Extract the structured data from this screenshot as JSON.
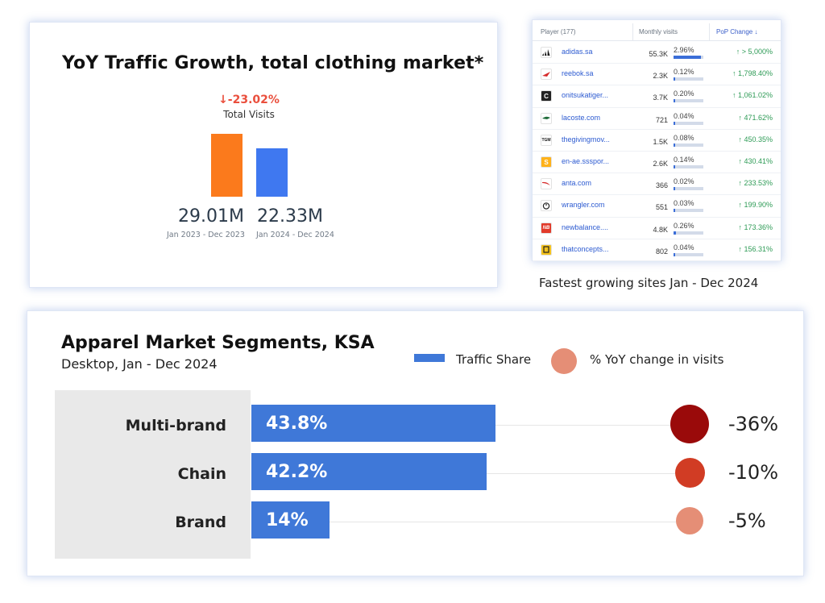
{
  "yoy_card": {
    "title": "YoY Traffic Growth, total clothing market*",
    "change": "↓-23.02%",
    "metric": "Total Visits",
    "colors": [
      "#fb7a1c",
      "#3f78f0"
    ]
  },
  "table": {
    "headers": [
      "Player (177)",
      "Monthly visits",
      "PoP Change ↓"
    ],
    "caption": "Fastest growing sites Jan - Dec 2024",
    "rows": [
      {
        "site": "adidas.sa",
        "visits": "55.3K",
        "share": "2.96%",
        "share_value": 2.96,
        "change": "↑ > 5,000%",
        "icon": "adidas-logo-icon",
        "logo_text": "",
        "logo_bg": "#ffffff",
        "logo_fg": "#111111"
      },
      {
        "site": "reebok.sa",
        "visits": "2.3K",
        "share": "0.12%",
        "share_value": 0.12,
        "change": "↑ 1,798.40%",
        "icon": "reebok-logo-icon",
        "logo_text": "",
        "logo_bg": "#ffffff",
        "logo_fg": "#d62b2b"
      },
      {
        "site": "onitsukatiger...",
        "visits": "3.7K",
        "share": "0.20%",
        "share_value": 0.2,
        "change": "↑ 1,061.02%",
        "icon": "onitsuka-logo-icon",
        "logo_text": "",
        "logo_bg": "#222222",
        "logo_fg": "#ffffff"
      },
      {
        "site": "lacoste.com",
        "visits": "721",
        "share": "0.04%",
        "share_value": 0.04,
        "change": "↑ 471.62%",
        "icon": "lacoste-logo-icon",
        "logo_text": "",
        "logo_bg": "#ffffff",
        "logo_fg": "#1f6b3a"
      },
      {
        "site": "thegivingmov...",
        "visits": "1.5K",
        "share": "0.08%",
        "share_value": 0.08,
        "change": "↑ 450.35%",
        "icon": "givingmovement-logo-icon",
        "logo_text": "",
        "logo_bg": "#ffffff",
        "logo_fg": "#111111"
      },
      {
        "site": "en-ae.ssspor...",
        "visits": "2.6K",
        "share": "0.14%",
        "share_value": 0.14,
        "change": "↑ 430.41%",
        "icon": "sss-logo-icon",
        "logo_text": "",
        "logo_bg": "#ffb21a",
        "logo_fg": "#ffffff"
      },
      {
        "site": "anta.com",
        "visits": "366",
        "share": "0.02%",
        "share_value": 0.02,
        "change": "↑ 233.53%",
        "icon": "anta-logo-icon",
        "logo_text": "",
        "logo_bg": "#ffffff",
        "logo_fg": "#d62b2b"
      },
      {
        "site": "wrangler.com",
        "visits": "551",
        "share": "0.03%",
        "share_value": 0.03,
        "change": "↑ 199.90%",
        "icon": "wrangler-power-icon",
        "logo_text": "",
        "logo_bg": "#ffffff",
        "logo_fg": "#222222"
      },
      {
        "site": "newbalance....",
        "visits": "4.8K",
        "share": "0.26%",
        "share_value": 0.26,
        "change": "↑ 173.36%",
        "icon": "newbalance-logo-icon",
        "logo_text": "",
        "logo_bg": "#e23b2b",
        "logo_fg": "#ffffff"
      },
      {
        "site": "thatconcepts...",
        "visits": "802",
        "share": "0.04%",
        "share_value": 0.04,
        "change": "↑ 156.31%",
        "icon": "thatconcept-logo-icon",
        "logo_text": "",
        "logo_bg": "#f4c21c",
        "logo_fg": "#222222"
      }
    ]
  },
  "segments_card": {
    "title": "Apparel Market Segments, KSA",
    "subtitle": "Desktop, Jan - Dec 2024",
    "legend_bar": "Traffic Share",
    "legend_dot": "% YoY change in visits",
    "legend_dot_color": "#e58e76",
    "bar_color": "#3f78d8"
  },
  "chart_data": [
    {
      "type": "bar",
      "title": "YoY Traffic Growth, total clothing market*",
      "categories": [
        "Jan 2023 - Dec 2023",
        "Jan 2024 - Dec 2024"
      ],
      "values": [
        29.01,
        22.33
      ],
      "value_labels": [
        "29.01M",
        "22.33M"
      ],
      "units": "M",
      "ylim": [
        0,
        30
      ],
      "grid": false
    },
    {
      "type": "bar",
      "title": "Apparel Market Segments, KSA",
      "orientation": "horizontal",
      "categories": [
        "Multi-brand",
        "Chain",
        "Brand"
      ],
      "series": [
        {
          "name": "Traffic Share",
          "values": [
            43.8,
            42.2,
            14
          ],
          "labels": [
            "43.8%",
            "42.2%",
            "14%"
          ]
        },
        {
          "name": "% YoY change in visits",
          "values": [
            -36,
            -10,
            -5
          ],
          "labels": [
            "-36%",
            "-10%",
            "-5%"
          ],
          "colors": [
            "#9a0a0a",
            "#d13c24",
            "#e58e76"
          ]
        }
      ],
      "legend": "top-right",
      "grid": false
    }
  ]
}
